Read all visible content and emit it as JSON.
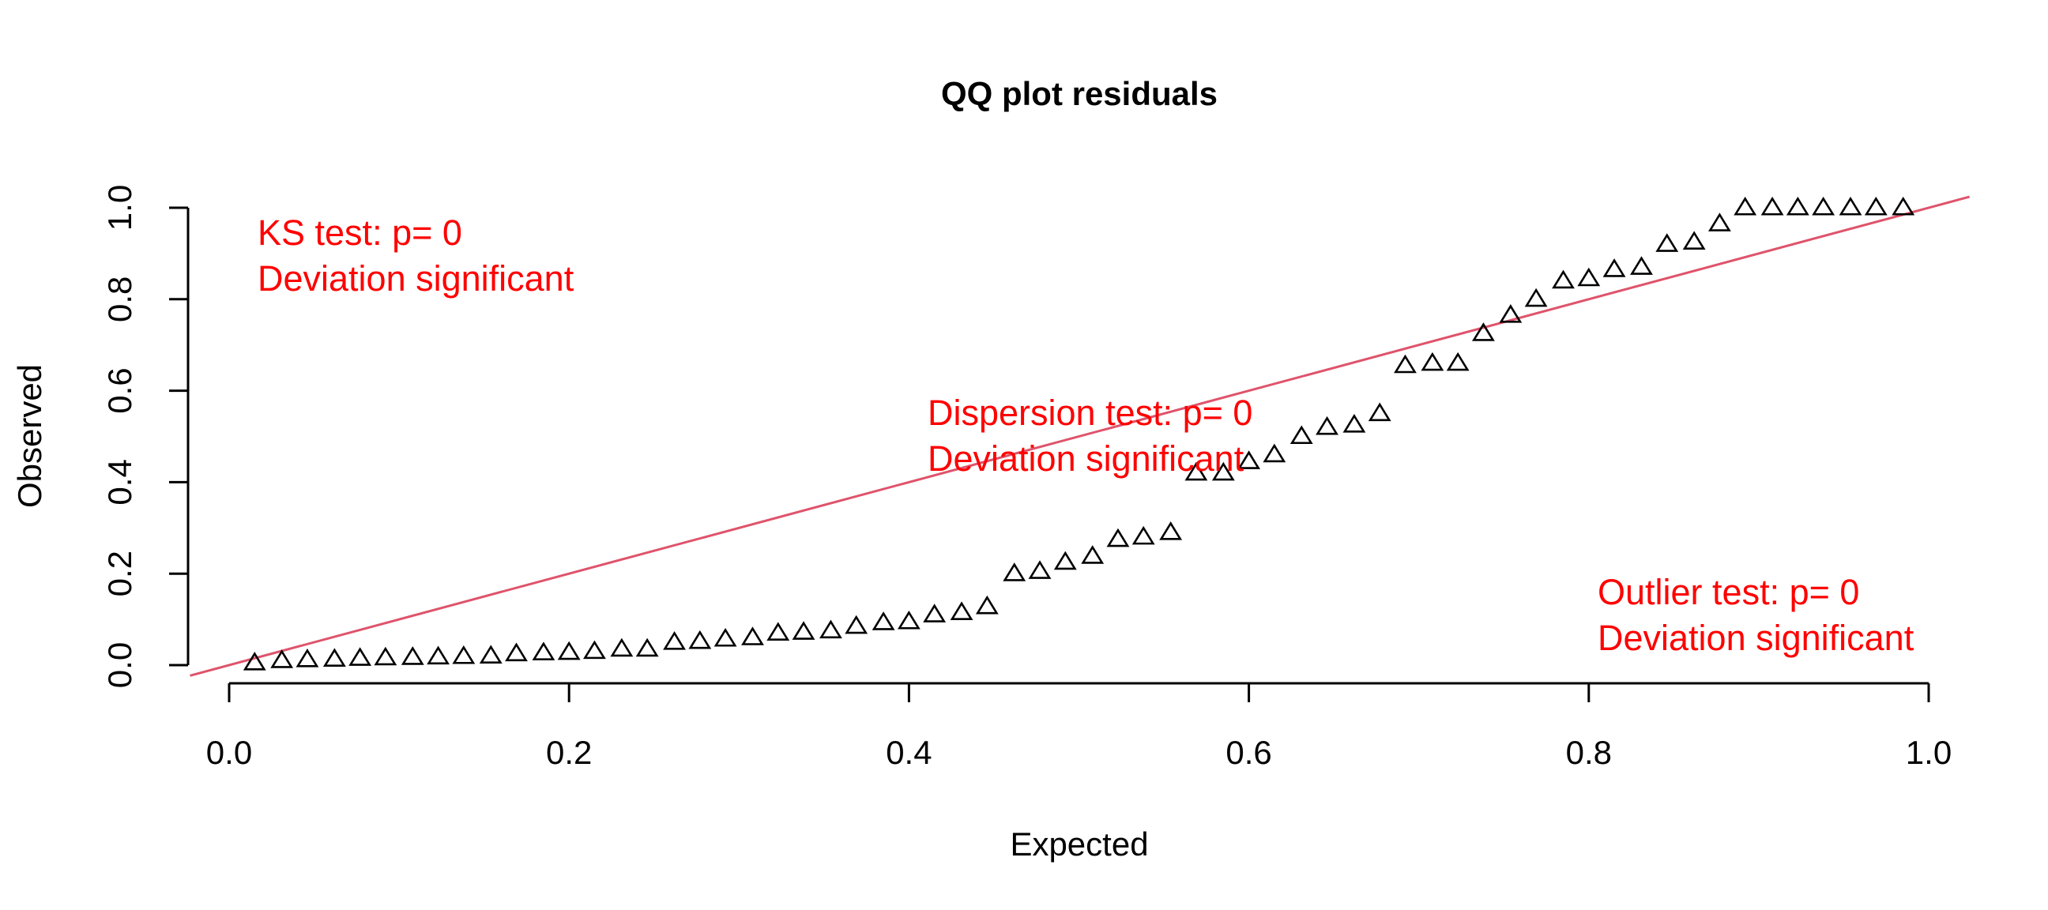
{
  "chart_data": {
    "type": "scatter",
    "title": "QQ plot residuals",
    "xlabel": "Expected",
    "ylabel": "Observed",
    "xlim": [
      0,
      1
    ],
    "ylim": [
      0,
      1
    ],
    "x_ticks": [
      "0.0",
      "0.2",
      "0.4",
      "0.6",
      "0.8",
      "1.0"
    ],
    "y_ticks": [
      "0.0",
      "0.2",
      "0.4",
      "0.6",
      "0.8",
      "1.0"
    ],
    "grid": false,
    "marker": "open-triangle",
    "point_color": "#000000",
    "reference_line": {
      "type": "identity",
      "color": "#df536b"
    },
    "annotation_color": "#ff0000",
    "annotations": [
      {
        "name": "ks",
        "lines": [
          "KS test: p= 0",
          "Deviation  significant"
        ]
      },
      {
        "name": "dispersion",
        "lines": [
          "Dispersion test: p= 0",
          "Deviation  significant"
        ]
      },
      {
        "name": "outlier",
        "lines": [
          "Outlier test: p= 0",
          "Deviation  significant"
        ]
      }
    ],
    "points": {
      "x": [
        0.015,
        0.031,
        0.046,
        0.062,
        0.077,
        0.092,
        0.108,
        0.123,
        0.138,
        0.154,
        0.169,
        0.185,
        0.2,
        0.215,
        0.231,
        0.246,
        0.262,
        0.277,
        0.292,
        0.308,
        0.323,
        0.338,
        0.354,
        0.369,
        0.385,
        0.4,
        0.415,
        0.431,
        0.446,
        0.462,
        0.477,
        0.492,
        0.508,
        0.523,
        0.538,
        0.554,
        0.569,
        0.585,
        0.6,
        0.615,
        0.631,
        0.646,
        0.662,
        0.677,
        0.692,
        0.708,
        0.723,
        0.738,
        0.754,
        0.769,
        0.785,
        0.8,
        0.815,
        0.831,
        0.846,
        0.862,
        0.877,
        0.892,
        0.908,
        0.923,
        0.938,
        0.954,
        0.969,
        0.985
      ],
      "y": [
        0.005,
        0.01,
        0.012,
        0.013,
        0.015,
        0.016,
        0.017,
        0.018,
        0.019,
        0.02,
        0.025,
        0.027,
        0.028,
        0.03,
        0.035,
        0.035,
        0.05,
        0.052,
        0.057,
        0.06,
        0.07,
        0.072,
        0.075,
        0.085,
        0.093,
        0.095,
        0.11,
        0.115,
        0.128,
        0.2,
        0.205,
        0.225,
        0.238,
        0.275,
        0.28,
        0.29,
        0.42,
        0.42,
        0.445,
        0.46,
        0.5,
        0.52,
        0.525,
        0.55,
        0.655,
        0.66,
        0.66,
        0.725,
        0.765,
        0.8,
        0.84,
        0.845,
        0.865,
        0.87,
        0.92,
        0.925,
        0.965,
        1.0,
        1.0,
        1.0,
        1.0,
        1.0,
        1.0,
        1.0
      ]
    }
  }
}
